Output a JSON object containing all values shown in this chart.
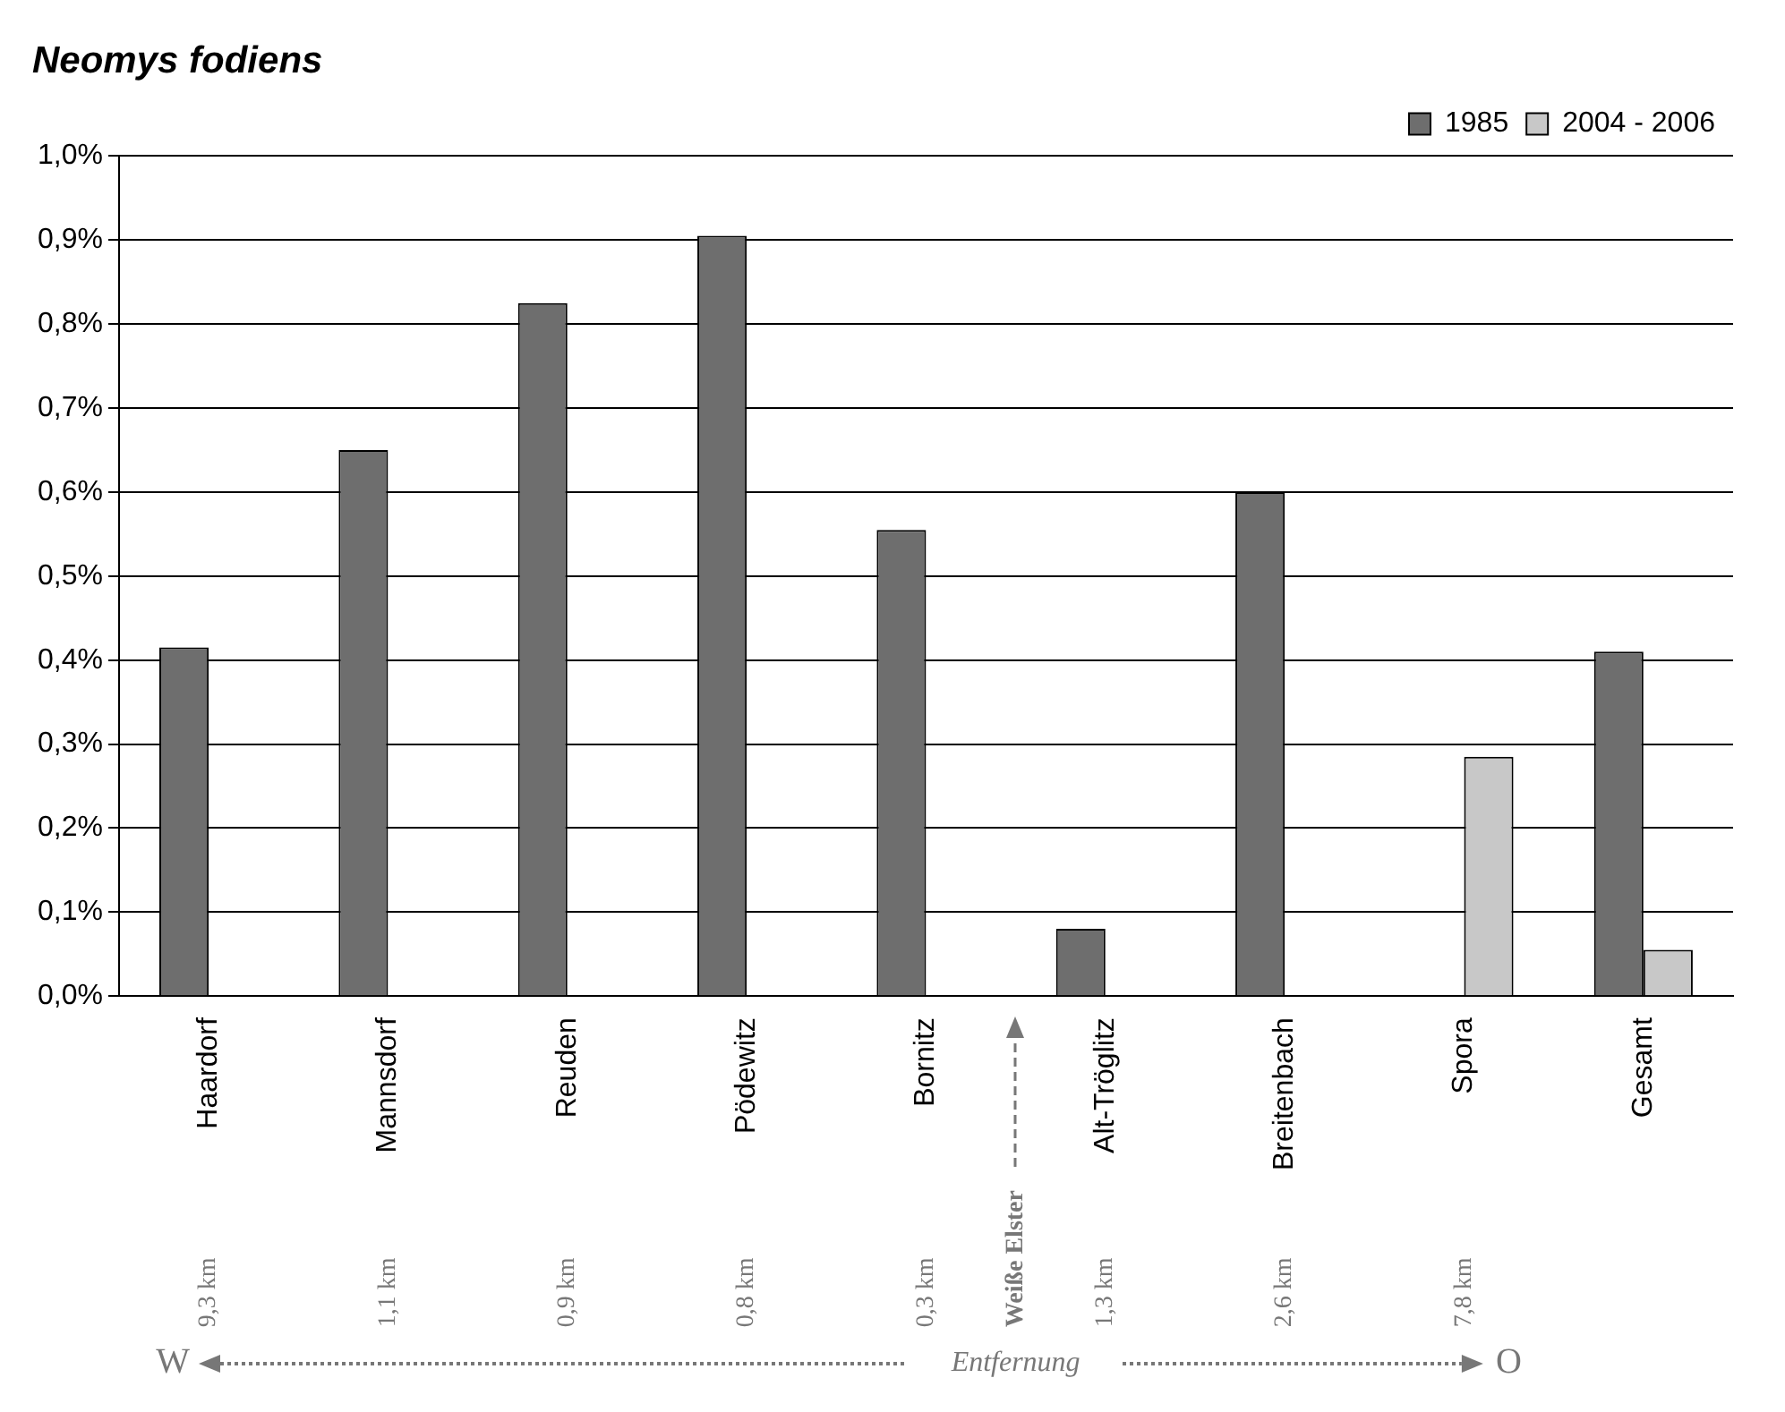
{
  "chart_data": {
    "type": "bar",
    "title": "Neomys fodiens",
    "categories": [
      "Haardorf",
      "Mannsdorf",
      "Reuden",
      "Pödewitz",
      "Bornitz",
      "Alt-Tröglitz",
      "Breitenbach",
      "Spora",
      "Gesamt"
    ],
    "series": [
      {
        "name": "1985",
        "color": "#6e6e6e",
        "values": [
          0.415,
          0.65,
          0.825,
          0.905,
          0.555,
          0.08,
          0.6,
          null,
          0.41
        ]
      },
      {
        "name": "2004 - 2006",
        "color": "#c8c8c8",
        "values": [
          null,
          null,
          null,
          null,
          null,
          null,
          null,
          0.285,
          0.055
        ]
      }
    ],
    "ylim": [
      0,
      1.0
    ],
    "yticks": [
      {
        "value": 0,
        "label": "0,0%"
      },
      {
        "value": 0.1,
        "label": "0,1%"
      },
      {
        "value": 0.2,
        "label": "0,2%"
      },
      {
        "value": 0.3,
        "label": "0,3%"
      },
      {
        "value": 0.4,
        "label": "0,4%"
      },
      {
        "value": 0.5,
        "label": "0,5%"
      },
      {
        "value": 0.6,
        "label": "0,6%"
      },
      {
        "value": 0.7,
        "label": "0,7%"
      },
      {
        "value": 0.8,
        "label": "0,8%"
      },
      {
        "value": 0.9,
        "label": "0,9%"
      },
      {
        "value": 1.0,
        "label": "1,0%"
      }
    ],
    "grid": "y",
    "legend": "top right",
    "annotations": [
      "9,3 km",
      "1,1 km",
      "0,9 km",
      "0,8 km",
      "0,3 km",
      "1,3 km",
      "2,6 km",
      "7,8 km",
      "Weiße Elster",
      "W",
      "Entfernung",
      "O"
    ]
  }
}
